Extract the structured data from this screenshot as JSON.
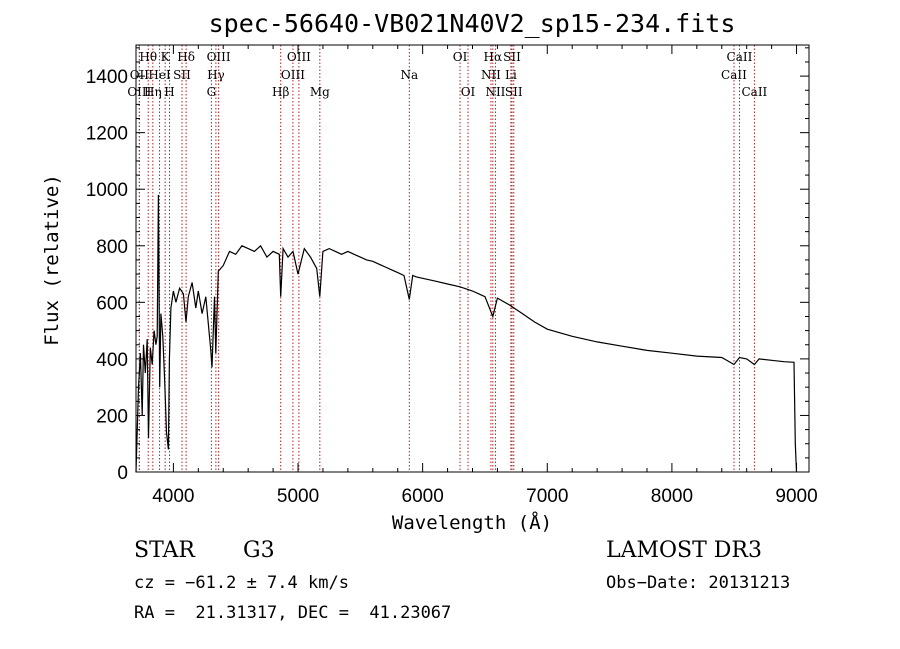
{
  "chart_data": {
    "type": "line",
    "title": "spec-56640-VB021N40V2_sp15-234.fits",
    "xlabel": "Wavelength (Å)",
    "ylabel": "Flux (relative)",
    "xlim": [
      3700,
      9100
    ],
    "ylim": [
      0,
      1510
    ],
    "x_ticks": [
      4000,
      5000,
      6000,
      7000,
      8000,
      9000
    ],
    "y_ticks": [
      0,
      200,
      400,
      600,
      800,
      1000,
      1200,
      1400
    ],
    "x_tick_labels": [
      "4000",
      "5000",
      "6000",
      "7000",
      "8000",
      "9000"
    ],
    "y_tick_labels": [
      "0",
      "200",
      "400",
      "600",
      "800",
      "1000",
      "1200",
      "1400"
    ],
    "series": [
      {
        "name": "flux",
        "color": "#000000",
        "x": [
          3700,
          3720,
          3735,
          3750,
          3760,
          3775,
          3790,
          3800,
          3815,
          3830,
          3845,
          3860,
          3870,
          3880,
          3890,
          3900,
          3915,
          3930,
          3945,
          3960,
          3968,
          3980,
          4000,
          4020,
          4050,
          4080,
          4101,
          4120,
          4150,
          4180,
          4200,
          4230,
          4260,
          4300,
          4310,
          4330,
          4340,
          4360,
          4400,
          4450,
          4500,
          4550,
          4600,
          4650,
          4700,
          4750,
          4800,
          4850,
          4861,
          4880,
          4920,
          4960,
          5000,
          5050,
          5100,
          5150,
          5175,
          5200,
          5250,
          5300,
          5350,
          5400,
          5450,
          5500,
          5550,
          5600,
          5650,
          5700,
          5750,
          5800,
          5850,
          5893,
          5920,
          5950,
          6000,
          6100,
          6200,
          6300,
          6400,
          6450,
          6500,
          6563,
          6600,
          6700,
          6800,
          6900,
          7000,
          7200,
          7400,
          7600,
          7800,
          8000,
          8200,
          8400,
          8498,
          8542,
          8600,
          8662,
          8700,
          8800,
          8900,
          8980,
          8990,
          9000
        ],
        "values": [
          0,
          300,
          420,
          200,
          450,
          350,
          470,
          120,
          440,
          380,
          500,
          450,
          480,
          980,
          300,
          560,
          480,
          320,
          140,
          80,
          400,
          580,
          640,
          600,
          650,
          630,
          530,
          620,
          670,
          580,
          640,
          560,
          620,
          430,
          370,
          620,
          420,
          710,
          730,
          780,
          770,
          800,
          790,
          780,
          800,
          760,
          780,
          770,
          620,
          790,
          760,
          780,
          700,
          790,
          760,
          720,
          620,
          780,
          790,
          780,
          770,
          780,
          770,
          760,
          750,
          745,
          735,
          725,
          715,
          705,
          695,
          610,
          695,
          690,
          685,
          675,
          665,
          655,
          640,
          630,
          620,
          550,
          615,
          590,
          560,
          530,
          505,
          480,
          460,
          445,
          430,
          420,
          410,
          405,
          380,
          405,
          400,
          380,
          400,
          395,
          390,
          388,
          100,
          0
        ]
      }
    ],
    "spectral_lines": [
      {
        "label": "Hθ",
        "wavelength": 3798,
        "row": 1
      },
      {
        "label": "OII",
        "wavelength": 3727,
        "row": 2
      },
      {
        "label": "OIII",
        "wavelength": 3727,
        "row": 3
      },
      {
        "label": "K",
        "wavelength": 3934,
        "row": 1
      },
      {
        "label": "HeI",
        "wavelength": 3889,
        "row": 2
      },
      {
        "label": "Hη",
        "wavelength": 3835,
        "row": 3
      },
      {
        "label": "Hδ",
        "wavelength": 4102,
        "row": 1
      },
      {
        "label": "SII",
        "wavelength": 4069,
        "row": 2
      },
      {
        "label": "H",
        "wavelength": 3969,
        "row": 3
      },
      {
        "label": "OIII",
        "wavelength": 4363,
        "row": 1
      },
      {
        "label": "Hγ",
        "wavelength": 4341,
        "row": 2
      },
      {
        "label": "G",
        "wavelength": 4305,
        "row": 3
      },
      {
        "label": "OIII",
        "wavelength": 5007,
        "row": 1
      },
      {
        "label": "OIII",
        "wavelength": 4959,
        "row": 2
      },
      {
        "label": "Hβ",
        "wavelength": 4861,
        "row": 3
      },
      {
        "label": "Mg",
        "wavelength": 5175,
        "row": 3
      },
      {
        "label": "Na",
        "wavelength": 5893,
        "row": 2
      },
      {
        "label": "OI",
        "wavelength": 6300,
        "row": 1
      },
      {
        "label": "OI",
        "wavelength": 6364,
        "row": 3
      },
      {
        "label": "Hα",
        "wavelength": 6563,
        "row": 1
      },
      {
        "label": "NII",
        "wavelength": 6548,
        "row": 2
      },
      {
        "label": "NII",
        "wavelength": 6584,
        "row": 3
      },
      {
        "label": "SII",
        "wavelength": 6717,
        "row": 1
      },
      {
        "label": "Li",
        "wavelength": 6708,
        "row": 2
      },
      {
        "label": "SII",
        "wavelength": 6731,
        "row": 3
      },
      {
        "label": "CaII",
        "wavelength": 8542,
        "row": 1
      },
      {
        "label": "CaII",
        "wavelength": 8498,
        "row": 2
      },
      {
        "label": "CaII",
        "wavelength": 8662,
        "row": 3
      }
    ]
  },
  "info": {
    "class": "STAR",
    "subclass": "G3",
    "survey": "LAMOST DR3",
    "redshift": "cz = −61.2 ± 7.4 km/s",
    "obs_date": "Obs−Date: 20131213",
    "coords": "RA =  21.31317, DEC =  41.23067"
  }
}
